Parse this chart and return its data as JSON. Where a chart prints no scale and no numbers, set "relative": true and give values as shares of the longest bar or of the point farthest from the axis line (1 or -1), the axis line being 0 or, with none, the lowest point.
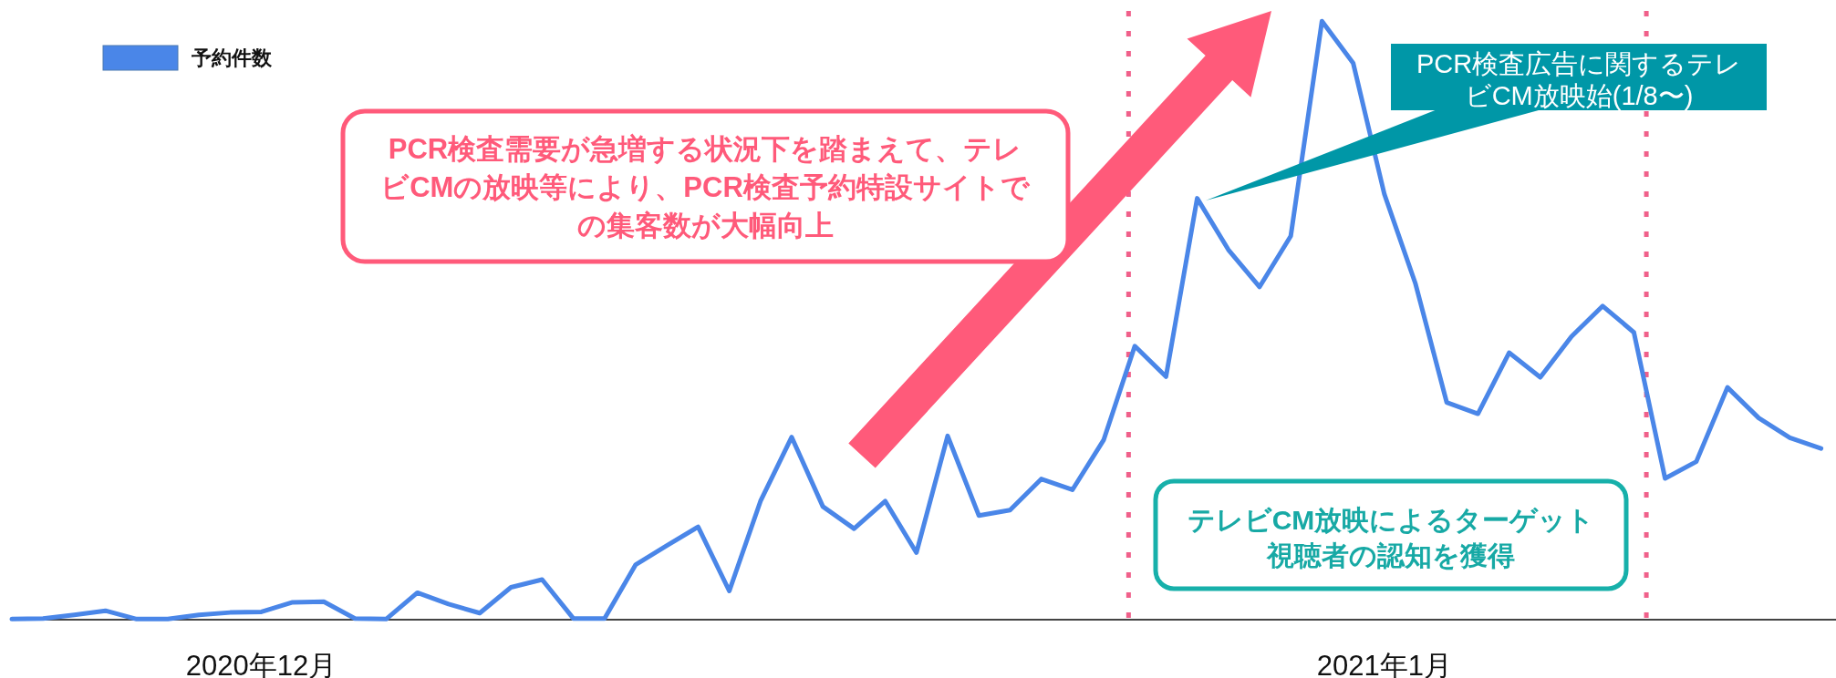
{
  "chart_data": {
    "type": "line",
    "relative": true,
    "legend": "top left",
    "categories": [
      null,
      null,
      null,
      null,
      null,
      null,
      null,
      null,
      "2020年12月",
      null,
      null,
      null,
      null,
      null,
      null,
      null,
      null,
      null,
      null,
      null,
      null,
      null,
      null,
      null,
      null,
      null,
      null,
      null,
      null,
      null,
      null,
      null,
      null,
      null,
      null,
      null,
      null,
      null,
      null,
      null,
      null,
      null,
      null,
      null,
      "2021年1月",
      null,
      null,
      null,
      null,
      null,
      null,
      null,
      null,
      null,
      null,
      null,
      null,
      null,
      null
    ],
    "series": [
      {
        "name": "予約件数",
        "color": "#4a86e8",
        "values": [
          0.001,
          0.002,
          0.008,
          0.015,
          0.001,
          0.001,
          0.008,
          0.012,
          0.013,
          0.029,
          0.03,
          0.002,
          0.001,
          0.045,
          0.026,
          0.011,
          0.054,
          0.067,
          0.002,
          0.002,
          0.092,
          0.124,
          0.155,
          0.048,
          0.198,
          0.305,
          0.189,
          0.152,
          0.198,
          0.112,
          0.307,
          0.174,
          0.183,
          0.235,
          0.217,
          0.3,
          0.457,
          0.406,
          0.704,
          0.618,
          0.556,
          0.641,
          1.0,
          0.93,
          0.711,
          0.561,
          0.363,
          0.344,
          0.446,
          0.405,
          0.473,
          0.524,
          0.48,
          0.236,
          0.264,
          0.388,
          0.337,
          0.304,
          0.286
        ]
      }
    ],
    "annotations": [
      "PCR検査需要が急増する状況下を踏まえて、テレビCMの放映等により、PCR検査予約特設サイトでの集客数が大幅向上",
      "PCR検査広告に関するテレビCM放映始(1/8〜)",
      "テレビCM放映によるターゲット視聴者の認知を獲得"
    ]
  }
}
